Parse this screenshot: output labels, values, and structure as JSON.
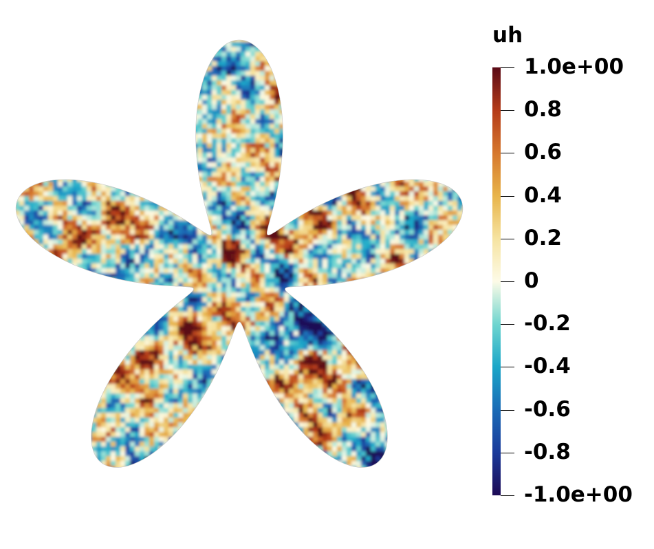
{
  "colorbar": {
    "title": "uh",
    "range": [
      -1.0,
      1.0
    ],
    "ticks": [
      {
        "value": 1.0,
        "label": "1.0e+00"
      },
      {
        "value": 0.8,
        "label": "0.8"
      },
      {
        "value": 0.6,
        "label": "0.6"
      },
      {
        "value": 0.4,
        "label": "0.4"
      },
      {
        "value": 0.2,
        "label": "0.2"
      },
      {
        "value": 0.0,
        "label": "0"
      },
      {
        "value": -0.2,
        "label": "-0.2"
      },
      {
        "value": -0.4,
        "label": "-0.4"
      },
      {
        "value": -0.6,
        "label": "-0.6"
      },
      {
        "value": -0.8,
        "label": "-0.8"
      },
      {
        "value": -1.0,
        "label": "-1.0e+00"
      }
    ],
    "colormap": [
      {
        "value": -1.0,
        "color": "#1c0a55"
      },
      {
        "value": -0.8,
        "color": "#1a3a9a"
      },
      {
        "value": -0.6,
        "color": "#1a6bb6"
      },
      {
        "value": -0.4,
        "color": "#1aa6c8"
      },
      {
        "value": -0.2,
        "color": "#6fd5cf"
      },
      {
        "value": 0.0,
        "color": "#fdfbe7"
      },
      {
        "value": 0.2,
        "color": "#f6e3a0"
      },
      {
        "value": 0.4,
        "color": "#e8b44a"
      },
      {
        "value": 0.6,
        "color": "#d6772d"
      },
      {
        "value": 0.8,
        "color": "#b43b19"
      },
      {
        "value": 1.0,
        "color": "#5a0a16"
      }
    ]
  },
  "figure": {
    "shape": "five-lobed star domain",
    "field": "uh",
    "pattern": "random field"
  }
}
